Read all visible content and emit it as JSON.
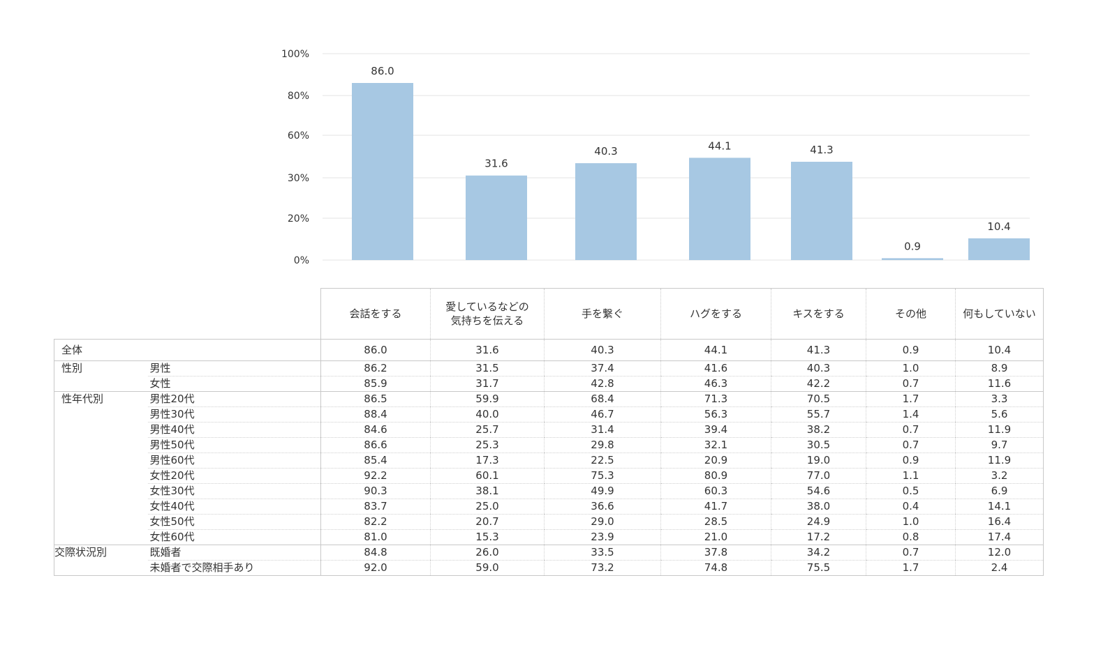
{
  "chart_data": {
    "type": "bar",
    "title": "",
    "xlabel": "",
    "ylabel": "",
    "categories": [
      "会話をする",
      "愛しているなどの気持ちを伝える",
      "手を繋ぐ",
      "ハグをする",
      "キスをする",
      "その他",
      "何もしていない"
    ],
    "values": [
      86.0,
      31.6,
      40.3,
      44.1,
      41.3,
      0.9,
      10.4
    ],
    "value_labels": [
      "86.0",
      "31.6",
      "40.3",
      "44.1",
      "41.3",
      "0.9",
      "10.4"
    ],
    "yticks": [
      0,
      20,
      30,
      60,
      80,
      100
    ],
    "ytick_labels": [
      "0%",
      "20%",
      "30%",
      "60%",
      "80%",
      "100%"
    ],
    "ylim": [
      0,
      100
    ],
    "grid": true,
    "bar_color": "#a7c8e3",
    "grid_color": "#e3e3e3"
  },
  "table": {
    "columns": [
      [
        "会話をする"
      ],
      [
        "愛しているなどの",
        "気持ちを伝える"
      ],
      [
        "手を繋ぐ"
      ],
      [
        "ハグをする"
      ],
      [
        "キスをする"
      ],
      [
        "その他"
      ],
      [
        "何もしていない"
      ]
    ],
    "overall": {
      "label": "全体",
      "values": [
        "86.0",
        "31.6",
        "40.3",
        "44.1",
        "41.3",
        "0.9",
        "10.4"
      ]
    },
    "groups": [
      {
        "label": "性別",
        "rows": [
          {
            "label": "男性",
            "values": [
              "86.2",
              "31.5",
              "37.4",
              "41.6",
              "40.3",
              "1.0",
              "8.9"
            ]
          },
          {
            "label": "女性",
            "values": [
              "85.9",
              "31.7",
              "42.8",
              "46.3",
              "42.2",
              "0.7",
              "11.6"
            ]
          }
        ]
      },
      {
        "label": "性年代別",
        "rows": [
          {
            "label": "男性20代",
            "values": [
              "86.5",
              "59.9",
              "68.4",
              "71.3",
              "70.5",
              "1.7",
              "3.3"
            ]
          },
          {
            "label": "男性30代",
            "values": [
              "88.4",
              "40.0",
              "46.7",
              "56.3",
              "55.7",
              "1.4",
              "5.6"
            ]
          },
          {
            "label": "男性40代",
            "values": [
              "84.6",
              "25.7",
              "31.4",
              "39.4",
              "38.2",
              "0.7",
              "11.9"
            ]
          },
          {
            "label": "男性50代",
            "values": [
              "86.6",
              "25.3",
              "29.8",
              "32.1",
              "30.5",
              "0.7",
              "9.7"
            ]
          },
          {
            "label": "男性60代",
            "values": [
              "85.4",
              "17.3",
              "22.5",
              "20.9",
              "19.0",
              "0.9",
              "11.9"
            ]
          },
          {
            "label": "女性20代",
            "values": [
              "92.2",
              "60.1",
              "75.3",
              "80.9",
              "77.0",
              "1.1",
              "3.2"
            ]
          },
          {
            "label": "女性30代",
            "values": [
              "90.3",
              "38.1",
              "49.9",
              "60.3",
              "54.6",
              "0.5",
              "6.9"
            ]
          },
          {
            "label": "女性40代",
            "values": [
              "83.7",
              "25.0",
              "36.6",
              "41.7",
              "38.0",
              "0.4",
              "14.1"
            ]
          },
          {
            "label": "女性50代",
            "values": [
              "82.2",
              "20.7",
              "29.0",
              "28.5",
              "24.9",
              "1.0",
              "16.4"
            ]
          },
          {
            "label": "女性60代",
            "values": [
              "81.0",
              "15.3",
              "23.9",
              "21.0",
              "17.2",
              "0.8",
              "17.4"
            ]
          }
        ]
      },
      {
        "label": "交際状況別",
        "rows": [
          {
            "label": "既婚者",
            "values": [
              "84.8",
              "26.0",
              "33.5",
              "37.8",
              "34.2",
              "0.7",
              "12.0"
            ]
          },
          {
            "label": "未婚者で交際相手あり",
            "values": [
              "92.0",
              "59.0",
              "73.2",
              "74.8",
              "75.5",
              "1.7",
              "2.4"
            ]
          }
        ]
      }
    ]
  }
}
